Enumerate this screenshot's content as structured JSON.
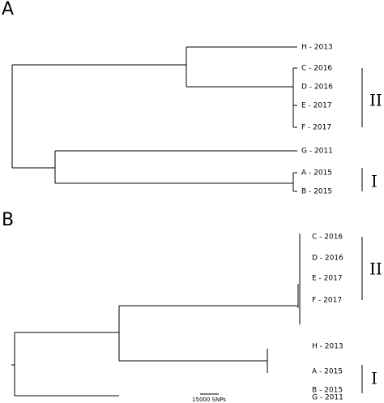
{
  "panels": [
    {
      "label": "A",
      "leaves": [
        "H - 2013",
        "C - 2016",
        "D - 2016",
        "E - 2017",
        "F - 2017",
        "G - 2011",
        "A - 2015",
        "B - 2015"
      ],
      "clades": [
        {
          "label": "II"
        },
        {
          "label": "I"
        }
      ]
    },
    {
      "label": "B",
      "leaves": [
        "C - 2016",
        "D - 2016",
        "E - 2017",
        "F - 2017",
        "H - 2013",
        "A - 2015",
        "B - 2015",
        "G - 2011"
      ],
      "clades": [
        {
          "label": "II"
        },
        {
          "label": "I"
        }
      ],
      "scale_bar": "15000 SNPs"
    }
  ]
}
